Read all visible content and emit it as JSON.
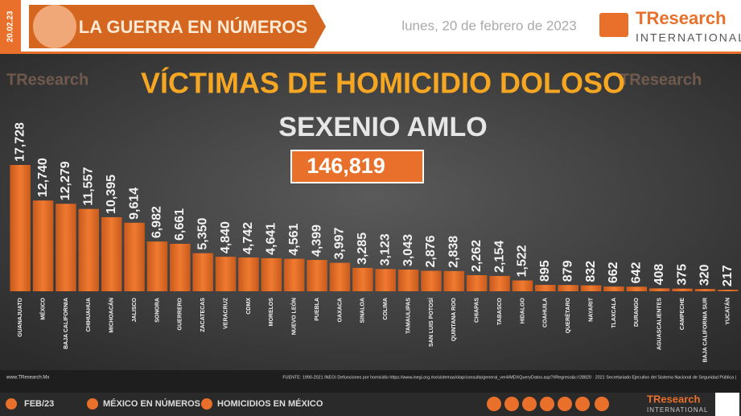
{
  "header": {
    "date_tag": "20.02.23",
    "section": "LA GUERRA EN NÚMEROS",
    "date": "lunes, 20 de febrero de 2023",
    "brand": "TResearch",
    "brand_sub": "INTERNATIONAL"
  },
  "chart_data": {
    "type": "bar",
    "title": "VÍCTIMAS DE HOMICIDIO DOLOSO",
    "subtitle": "SEXENIO AMLO",
    "total": "146,819",
    "color": "#e8702a",
    "categories": [
      "GUANAJUATO",
      "MÉXICO",
      "BAJA CALIFORNIA",
      "CHIHUAHUA",
      "MICHOACÁN",
      "JALISCO",
      "SONORA",
      "GUERRERO",
      "ZACATECAS",
      "VERACRUZ",
      "CDMX",
      "MORELOS",
      "NUEVO LEÓN",
      "PUEBLA",
      "OAXACA",
      "SINALOA",
      "COLIMA",
      "TAMAULIPAS",
      "SAN LUIS POTOSÍ",
      "QUINTANA ROO",
      "CHIAPAS",
      "TABASCO",
      "HIDALGO",
      "COAHUILA",
      "QUERÉTARO",
      "NAYARIT",
      "TLAXCALA",
      "DURANGO",
      "AGUASCALIENTES",
      "CAMPECHE",
      "BAJA CALIFORNIA SUR",
      "YUCATÁN"
    ],
    "values": [
      17728,
      12740,
      12279,
      11557,
      10395,
      9614,
      6982,
      6661,
      5350,
      4840,
      4742,
      4641,
      4561,
      4399,
      3997,
      3285,
      3123,
      3043,
      2876,
      2838,
      2262,
      2154,
      1522,
      895,
      879,
      832,
      662,
      642,
      408,
      375,
      320,
      217
    ],
    "value_labels": [
      "17,728",
      "12,740",
      "12,279",
      "11,557",
      "10,395",
      "9,614",
      "6,982",
      "6,661",
      "5,350",
      "4,840",
      "4,742",
      "4,641",
      "4,561",
      "4,399",
      "3,997",
      "3,285",
      "3,123",
      "3,043",
      "2,876",
      "2,838",
      "2,262",
      "2,154",
      "1,522",
      "895",
      "879",
      "832",
      "662",
      "642",
      "408",
      "375",
      "320",
      "217"
    ]
  },
  "footer": {
    "site": "www.TResearch.Mx",
    "source": "FUENTE: 1990-2021 INEGI Defunciones por homicidio https://www.inegi.org.mx/sistemas/olap/consulta/general_ver4/MDXQueryDatos.asp?#Regreso&c=28820 · 2021 Secretariado Ejecutivo del Sistema Nacional de Seguridad Pública |",
    "month": "FEB/23",
    "link1": "MÉXICO EN NÚMEROS",
    "link2": "HOMICIDIOS EN MÉXICO"
  }
}
